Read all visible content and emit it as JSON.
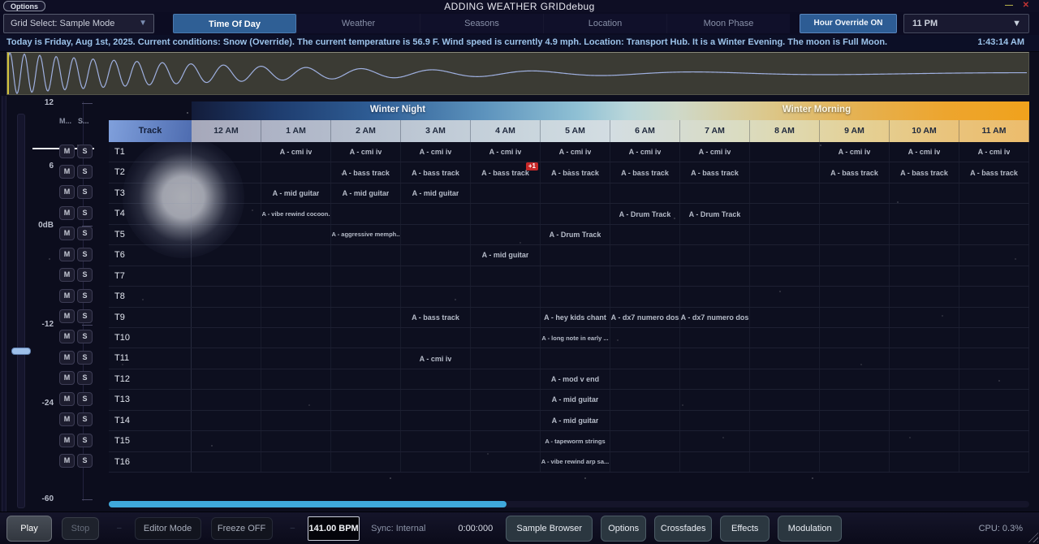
{
  "titlebar": {
    "options": "Options",
    "title": "ADDING WEATHER GRIDdebug"
  },
  "icons": {
    "minimize": "—",
    "close": "✕",
    "dropdown": "▼"
  },
  "toolbar": {
    "grid_select": "Grid Select: Sample Mode",
    "tabs": [
      {
        "label": "Time Of Day",
        "active": true
      },
      {
        "label": "Weather",
        "active": false
      },
      {
        "label": "Seasons",
        "active": false
      },
      {
        "label": "Location",
        "active": false
      },
      {
        "label": "Moon Phase",
        "active": false
      }
    ],
    "hour_override": "Hour Override ON",
    "hour_value": "11 PM"
  },
  "status": {
    "message": "Today is Friday, Aug 1st, 2025. Current conditions: Snow (Override). The current temperature is 56.9 F. Wind speed is currently 4.9 mph. Location: Transport Hub. It is a Winter Evening. The moon is Full Moon.",
    "clock": "1:43:14 AM"
  },
  "mixer": {
    "scale": [
      "12",
      "6",
      "0dB",
      "-12",
      "-24",
      "-60"
    ],
    "mute_header": "M...",
    "solo_header": "S...",
    "mute_button": "M",
    "solo_button": "S"
  },
  "grid": {
    "track_header": "Track",
    "seasons": [
      "Winter Night",
      "Winter Morning"
    ],
    "hours": [
      "12 AM",
      "1 AM",
      "2 AM",
      "3 AM",
      "4 AM",
      "5 AM",
      "6 AM",
      "7 AM",
      "8 AM",
      "9 AM",
      "10 AM",
      "11 AM"
    ],
    "tracks": [
      {
        "name": "T1",
        "cells": [
          {
            "col": 1,
            "label": "A - cmi iv"
          },
          {
            "col": 2,
            "label": "A - cmi iv"
          },
          {
            "col": 3,
            "label": "A - cmi iv"
          },
          {
            "col": 4,
            "label": "A - cmi iv"
          },
          {
            "col": 5,
            "label": "A - cmi iv"
          },
          {
            "col": 6,
            "label": "A - cmi iv"
          },
          {
            "col": 7,
            "label": "A - cmi iv"
          },
          {
            "col": 9,
            "label": "A - cmi iv"
          },
          {
            "col": 10,
            "label": "A - cmi iv"
          },
          {
            "col": 11,
            "label": "A - cmi iv"
          }
        ]
      },
      {
        "name": "T2",
        "cells": [
          {
            "col": 2,
            "label": "A - bass track"
          },
          {
            "col": 3,
            "label": "A - bass track"
          },
          {
            "col": 4,
            "label": "A - bass track",
            "badge": "+1"
          },
          {
            "col": 5,
            "label": "A - bass track"
          },
          {
            "col": 6,
            "label": "A - bass track"
          },
          {
            "col": 7,
            "label": "A - bass track"
          },
          {
            "col": 9,
            "label": "A - bass track"
          },
          {
            "col": 10,
            "label": "A - bass track"
          },
          {
            "col": 11,
            "label": "A - bass track"
          }
        ]
      },
      {
        "name": "T3",
        "cells": [
          {
            "col": 1,
            "label": "A - mid guitar"
          },
          {
            "col": 2,
            "label": "A - mid guitar"
          },
          {
            "col": 3,
            "label": "A - mid guitar"
          }
        ]
      },
      {
        "name": "T4",
        "cells": [
          {
            "col": 1,
            "label": "A - vibe rewind cocoon..."
          },
          {
            "col": 6,
            "label": "A - Drum Track"
          },
          {
            "col": 7,
            "label": "A - Drum Track"
          }
        ]
      },
      {
        "name": "T5",
        "cells": [
          {
            "col": 2,
            "label": "A - aggressive memph..."
          },
          {
            "col": 5,
            "label": "A - Drum Track"
          }
        ]
      },
      {
        "name": "T6",
        "cells": [
          {
            "col": 4,
            "label": "A - mid guitar"
          }
        ]
      },
      {
        "name": "T7",
        "cells": []
      },
      {
        "name": "T8",
        "cells": []
      },
      {
        "name": "T9",
        "cells": [
          {
            "col": 3,
            "label": "A - bass track"
          },
          {
            "col": 5,
            "label": "A - hey kids chant"
          },
          {
            "col": 6,
            "label": "A - dx7 numero dos"
          },
          {
            "col": 7,
            "label": "A - dx7 numero dos"
          }
        ]
      },
      {
        "name": "T10",
        "cells": [
          {
            "col": 5,
            "label": "A - long note in early ..."
          }
        ]
      },
      {
        "name": "T11",
        "cells": [
          {
            "col": 3,
            "label": "A - cmi iv"
          }
        ]
      },
      {
        "name": "T12",
        "cells": [
          {
            "col": 5,
            "label": "A - mod v end"
          }
        ]
      },
      {
        "name": "T13",
        "cells": [
          {
            "col": 5,
            "label": "A - mid guitar"
          }
        ]
      },
      {
        "name": "T14",
        "cells": [
          {
            "col": 5,
            "label": "A - mid guitar"
          }
        ]
      },
      {
        "name": "T15",
        "cells": [
          {
            "col": 5,
            "label": "A - tapeworm strings"
          }
        ]
      },
      {
        "name": "T16",
        "cells": [
          {
            "col": 5,
            "label": "A - vibe rewind arp sa..."
          }
        ]
      }
    ]
  },
  "transport": {
    "play": "Play",
    "stop": "Stop",
    "separator": "–",
    "editor_mode": "Editor Mode",
    "freeze": "Freeze OFF",
    "bpm": "141.00 BPM",
    "sync": "Sync: Internal",
    "time": "0:00:000",
    "sample_browser": "Sample Browser",
    "options": "Options",
    "crossfades": "Crossfades",
    "effects": "Effects",
    "modulation": "Modulation",
    "cpu": "CPU: 0.3%"
  },
  "colors": {
    "accent_blue": "#2f5f95",
    "scrollbar_blue": "#3fa9dc",
    "badge_red": "#c62828",
    "playhead_yellow": "#d2c23c",
    "waveform_blue": "#9fb0e0",
    "status_text": "#9cc3ea"
  }
}
